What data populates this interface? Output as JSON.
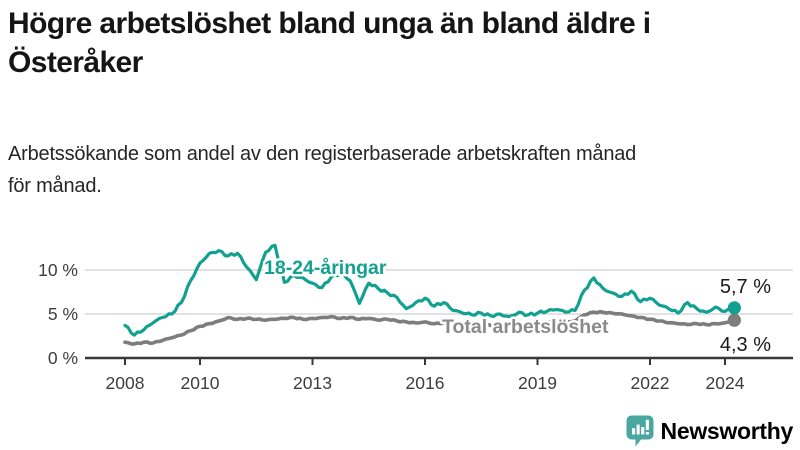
{
  "header": {
    "title_line1": "Högre arbetslöshet bland unga än bland äldre i",
    "title_line2": "Österåker",
    "subtitle_line1": "Arbetssökande som andel av den registerbaserade arbetskraften månad",
    "subtitle_line2": "för månad."
  },
  "chart_data": {
    "type": "line",
    "title": "",
    "xlabel": "",
    "ylabel": "",
    "x_unit": "year (monthly data)",
    "x_start_year": 2008,
    "x_step_years": 0.25,
    "x_end_year": 2024.25,
    "x_tick_years": [
      2008,
      2010,
      2013,
      2016,
      2019,
      2022,
      2024
    ],
    "x_tick_labels": [
      "2008",
      "2010",
      "2013",
      "2016",
      "2019",
      "2022",
      "2024"
    ],
    "y_ticks": [
      {
        "value": 0,
        "label": "0 %"
      },
      {
        "value": 5,
        "label": "5 %"
      },
      {
        "value": 10,
        "label": "10 %"
      }
    ],
    "ylim": [
      0,
      13.5
    ],
    "grid": "horizontal",
    "legend_position": "inline-labels",
    "series": [
      {
        "name": "18-24-åringar",
        "color": "#12a191",
        "end_value": 5.7,
        "end_label": "5,7 %",
        "values": [
          3.7,
          2.6,
          3.2,
          4.0,
          4.6,
          5.0,
          6.3,
          8.8,
          10.8,
          11.9,
          12.2,
          11.6,
          11.9,
          10.3,
          8.9,
          12.0,
          12.8,
          8.6,
          9.4,
          9.1,
          8.5,
          8.0,
          9.2,
          9.6,
          8.8,
          6.2,
          8.5,
          7.9,
          7.4,
          6.9,
          5.6,
          6.3,
          6.8,
          5.9,
          6.3,
          5.4,
          5.1,
          4.9,
          5.1,
          4.8,
          5.0,
          4.7,
          5.2,
          4.9,
          5.1,
          5.3,
          5.5,
          5.2,
          5.4,
          7.7,
          9.1,
          7.9,
          7.4,
          7.0,
          7.6,
          6.4,
          6.8,
          6.0,
          5.6,
          5.1,
          6.3,
          5.6,
          5.2,
          5.8,
          5.3,
          5.7
        ]
      },
      {
        "name": "Total arbetslöshet",
        "color": "#7d7d7d",
        "end_value": 4.3,
        "end_label": "4,3 %",
        "values": [
          1.8,
          1.6,
          1.8,
          1.7,
          2.0,
          2.3,
          2.6,
          3.1,
          3.6,
          3.9,
          4.2,
          4.6,
          4.4,
          4.5,
          4.4,
          4.3,
          4.4,
          4.5,
          4.6,
          4.4,
          4.5,
          4.6,
          4.7,
          4.5,
          4.6,
          4.4,
          4.5,
          4.3,
          4.4,
          4.2,
          4.1,
          4.0,
          4.1,
          3.9,
          4.0,
          3.8,
          3.9,
          3.8,
          3.9,
          3.7,
          3.8,
          3.7,
          3.8,
          3.7,
          3.9,
          4.0,
          4.1,
          4.0,
          4.2,
          4.9,
          5.2,
          5.2,
          5.1,
          5.0,
          4.8,
          4.6,
          4.4,
          4.2,
          4.0,
          3.9,
          3.8,
          3.9,
          3.8,
          3.9,
          4.0,
          4.3
        ]
      }
    ]
  },
  "footer": {
    "brand": "Newsworthy",
    "brand_text_color": "#3f9e98",
    "logo_icon": "bar-chart-speech-bubble-icon",
    "logo_icon_color": "#4aa6a0"
  },
  "colors": {
    "title_text": "#151515",
    "subtitle_text": "#262626",
    "axis_text": "#3d3d3d",
    "axis_line": "#383838",
    "gridline": "#d8d8d8",
    "end_value_text": "#1a1a1a",
    "background": "#ffffff"
  }
}
